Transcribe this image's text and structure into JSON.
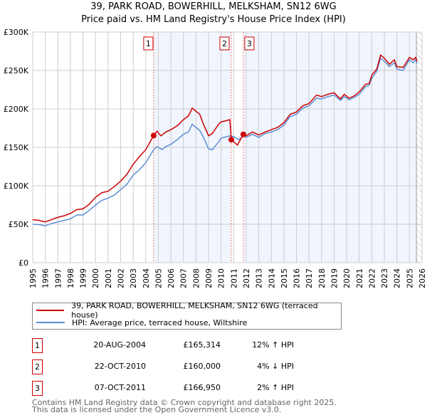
{
  "chart_data": {
    "type": "line",
    "title": "39, PARK ROAD, BOWERHILL, MELKSHAM, SN12 6WG",
    "subtitle": "Price paid vs. HM Land Registry's House Price Index (HPI)",
    "xlim": [
      1995,
      2026
    ],
    "ylim": [
      0,
      300000
    ],
    "x_ticks": [
      "1995",
      "1996",
      "1997",
      "1998",
      "1999",
      "2000",
      "2001",
      "2002",
      "2003",
      "2004",
      "2005",
      "2006",
      "2007",
      "2008",
      "2009",
      "2010",
      "2011",
      "2012",
      "2013",
      "2014",
      "2015",
      "2016",
      "2017",
      "2018",
      "2019",
      "2020",
      "2021",
      "2022",
      "2023",
      "2024",
      "2025",
      "2026"
    ],
    "y_ticks": [
      {
        "v": 0,
        "label": "£0"
      },
      {
        "v": 50000,
        "label": "£50K"
      },
      {
        "v": 100000,
        "label": "£100K"
      },
      {
        "v": 150000,
        "label": "£150K"
      },
      {
        "v": 200000,
        "label": "£200K"
      },
      {
        "v": 250000,
        "label": "£250K"
      },
      {
        "v": 300000,
        "label": "£300K"
      }
    ],
    "grid": true,
    "series": [
      {
        "name": "39, PARK ROAD, BOWERHILL, MELKSHAM, SN12 6WG (terraced house)",
        "color": "#cc0000",
        "points": [
          [
            1995,
            56000
          ],
          [
            1995.5,
            55000
          ],
          [
            1996,
            53000
          ],
          [
            1996.5,
            56000
          ],
          [
            1997,
            59000
          ],
          [
            1997.5,
            61000
          ],
          [
            1998,
            64000
          ],
          [
            1998.5,
            69000
          ],
          [
            1999,
            70000
          ],
          [
            1999.5,
            76000
          ],
          [
            2000,
            85000
          ],
          [
            2000.5,
            91000
          ],
          [
            2001,
            93000
          ],
          [
            2001.5,
            99000
          ],
          [
            2002,
            106000
          ],
          [
            2002.5,
            115000
          ],
          [
            2003,
            128000
          ],
          [
            2003.5,
            138000
          ],
          [
            2004,
            147000
          ],
          [
            2004.63,
            165314
          ],
          [
            2004.9,
            171000
          ],
          [
            2005.2,
            165000
          ],
          [
            2005.6,
            170000
          ],
          [
            2006,
            173000
          ],
          [
            2006.5,
            178000
          ],
          [
            2007,
            186000
          ],
          [
            2007.4,
            191000
          ],
          [
            2007.7,
            201000
          ],
          [
            2008,
            197000
          ],
          [
            2008.3,
            193000
          ],
          [
            2008.6,
            180000
          ],
          [
            2009,
            165000
          ],
          [
            2009.3,
            168000
          ],
          [
            2009.8,
            180000
          ],
          [
            2010,
            183000
          ],
          [
            2010.7,
            186000
          ],
          [
            2010.81,
            160000
          ],
          [
            2011.3,
            153000
          ],
          [
            2011.77,
            166950
          ],
          [
            2012,
            165000
          ],
          [
            2012.5,
            170000
          ],
          [
            2013,
            166000
          ],
          [
            2013.5,
            170000
          ],
          [
            2014,
            173000
          ],
          [
            2014.5,
            176000
          ],
          [
            2015,
            182000
          ],
          [
            2015.5,
            193000
          ],
          [
            2016,
            196000
          ],
          [
            2016.5,
            204000
          ],
          [
            2017,
            207000
          ],
          [
            2017.6,
            218000
          ],
          [
            2018,
            216000
          ],
          [
            2018.5,
            219000
          ],
          [
            2019,
            221000
          ],
          [
            2019.5,
            213000
          ],
          [
            2019.8,
            219000
          ],
          [
            2020.2,
            214000
          ],
          [
            2020.6,
            217000
          ],
          [
            2021,
            222000
          ],
          [
            2021.5,
            232000
          ],
          [
            2021.8,
            233000
          ],
          [
            2022,
            244000
          ],
          [
            2022.4,
            252000
          ],
          [
            2022.7,
            270000
          ],
          [
            2023,
            266000
          ],
          [
            2023.4,
            258000
          ],
          [
            2023.8,
            264000
          ],
          [
            2024,
            255000
          ],
          [
            2024.5,
            254000
          ],
          [
            2025,
            267000
          ],
          [
            2025.3,
            264000
          ],
          [
            2025.5,
            267000
          ],
          [
            2025.6,
            262000
          ]
        ]
      },
      {
        "name": "HPI: Average price, terraced house, Wiltshire",
        "color": "#5b8fd4",
        "points": [
          [
            1995,
            50000
          ],
          [
            1995.5,
            49500
          ],
          [
            1996,
            48000
          ],
          [
            1996.5,
            51000
          ],
          [
            1997,
            53000
          ],
          [
            1997.5,
            55000
          ],
          [
            1998,
            57000
          ],
          [
            1998.5,
            62000
          ],
          [
            1999,
            62000
          ],
          [
            1999.5,
            68000
          ],
          [
            2000,
            75000
          ],
          [
            2000.5,
            81000
          ],
          [
            2001,
            84000
          ],
          [
            2001.5,
            88000
          ],
          [
            2002,
            95000
          ],
          [
            2002.5,
            102000
          ],
          [
            2003,
            114000
          ],
          [
            2003.5,
            121000
          ],
          [
            2004,
            130000
          ],
          [
            2004.63,
            147000
          ],
          [
            2004.9,
            151000
          ],
          [
            2005.3,
            147000
          ],
          [
            2005.6,
            151000
          ],
          [
            2006,
            154000
          ],
          [
            2006.5,
            160000
          ],
          [
            2007,
            167000
          ],
          [
            2007.4,
            170000
          ],
          [
            2007.7,
            180000
          ],
          [
            2008,
            176000
          ],
          [
            2008.3,
            172000
          ],
          [
            2008.6,
            163000
          ],
          [
            2009,
            148000
          ],
          [
            2009.3,
            147000
          ],
          [
            2009.8,
            157000
          ],
          [
            2010,
            162000
          ],
          [
            2010.7,
            165000
          ],
          [
            2011,
            164000
          ],
          [
            2011.4,
            160000
          ],
          [
            2011.77,
            165000
          ],
          [
            2012,
            163000
          ],
          [
            2012.5,
            167000
          ],
          [
            2013,
            163000
          ],
          [
            2013.5,
            168000
          ],
          [
            2014,
            170000
          ],
          [
            2014.5,
            173000
          ],
          [
            2015,
            179000
          ],
          [
            2015.5,
            190000
          ],
          [
            2016,
            193000
          ],
          [
            2016.5,
            201000
          ],
          [
            2017,
            204000
          ],
          [
            2017.6,
            214000
          ],
          [
            2018,
            213000
          ],
          [
            2018.5,
            216000
          ],
          [
            2019,
            218000
          ],
          [
            2019.5,
            211000
          ],
          [
            2019.8,
            216000
          ],
          [
            2020.2,
            212000
          ],
          [
            2020.6,
            215000
          ],
          [
            2021,
            219000
          ],
          [
            2021.5,
            229000
          ],
          [
            2021.8,
            231000
          ],
          [
            2022,
            240000
          ],
          [
            2022.4,
            249000
          ],
          [
            2022.7,
            266000
          ],
          [
            2023,
            262000
          ],
          [
            2023.4,
            255000
          ],
          [
            2023.8,
            260000
          ],
          [
            2024,
            252000
          ],
          [
            2024.5,
            250000
          ],
          [
            2025,
            264000
          ],
          [
            2025.3,
            260000
          ],
          [
            2025.5,
            264000
          ],
          [
            2025.6,
            259000
          ]
        ]
      }
    ],
    "sales": [
      {
        "label": "1",
        "x": 2004.63,
        "value": 165314
      },
      {
        "label": "2",
        "x": 2010.81,
        "value": 160000
      },
      {
        "label": "3",
        "x": 2011.77,
        "value": 166950
      }
    ],
    "shaded_ranges": [
      [
        2004.63,
        2010.81
      ],
      [
        2011.77,
        2025.55
      ]
    ],
    "hatched_from": 2025.55
  },
  "legend": {
    "items": [
      "39, PARK ROAD, BOWERHILL, MELKSHAM, SN12 6WG (terraced house)",
      "HPI: Average price, terraced house, Wiltshire"
    ]
  },
  "sales_table": [
    {
      "num": "1",
      "date": "20-AUG-2004",
      "price": "£165,314",
      "hpi": "12% ↑ HPI"
    },
    {
      "num": "2",
      "date": "22-OCT-2010",
      "price": "£160,000",
      "hpi": "4% ↓ HPI"
    },
    {
      "num": "3",
      "date": "07-OCT-2011",
      "price": "£166,950",
      "hpi": "2% ↑ HPI"
    }
  ],
  "footer": {
    "line1": "Contains HM Land Registry data © Crown copyright and database right 2025.",
    "line2": "This data is licensed under the Open Government Licence v3.0."
  }
}
